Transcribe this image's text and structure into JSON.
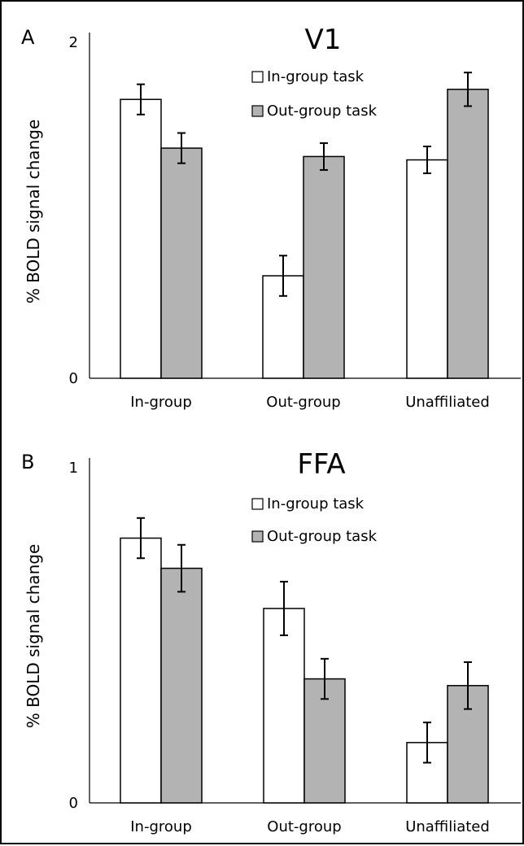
{
  "chart_data": [
    {
      "panel_label": "A",
      "type": "bar",
      "title": "V1",
      "ylabel": "% BOLD signal change",
      "xlabel": "",
      "ylim": [
        0,
        2
      ],
      "yticks": [
        "0",
        "2"
      ],
      "categories": [
        "In-group",
        "Out-group",
        "Unaffiliated"
      ],
      "legend_position": "top-right",
      "series": [
        {
          "name": "In-group task",
          "color": "#ffffff",
          "values": [
            1.66,
            0.61,
            1.3
          ],
          "errors": [
            0.09,
            0.12,
            0.08
          ]
        },
        {
          "name": "Out-group task",
          "color": "#b3b3b3",
          "values": [
            1.37,
            1.32,
            1.72
          ],
          "errors": [
            0.09,
            0.08,
            0.1
          ]
        }
      ]
    },
    {
      "panel_label": "B",
      "type": "bar",
      "title": "FFA",
      "ylabel": "% BOLD signal change",
      "xlabel": "",
      "ylim": [
        0,
        1
      ],
      "yticks": [
        "0",
        "1"
      ],
      "categories": [
        "In-group",
        "Out-group",
        "Unaffiliated"
      ],
      "legend_position": "top-right",
      "series": [
        {
          "name": "In-group task",
          "color": "#ffffff",
          "values": [
            0.79,
            0.58,
            0.18
          ],
          "errors": [
            0.06,
            0.08,
            0.06
          ]
        },
        {
          "name": "Out-group task",
          "color": "#b3b3b3",
          "values": [
            0.7,
            0.37,
            0.35
          ],
          "errors": [
            0.07,
            0.06,
            0.07
          ]
        }
      ]
    }
  ]
}
